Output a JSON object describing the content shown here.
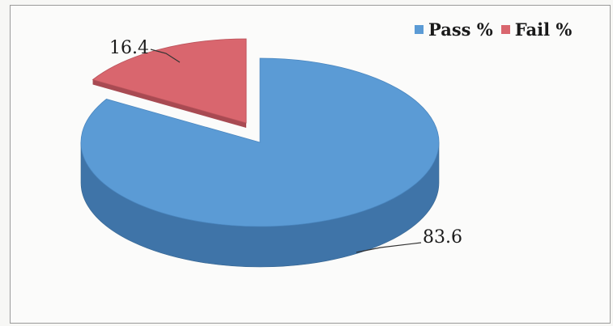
{
  "chart_data": {
    "type": "pie",
    "style": "3d",
    "categories": [
      "Pass %",
      "Fail %"
    ],
    "values": [
      83.6,
      16.4
    ],
    "data_labels": [
      "83.6",
      "16.4"
    ],
    "colors": [
      "#5b9bd5",
      "#d9666e"
    ],
    "side_colors": [
      "#3f74a8",
      "#a84a52"
    ],
    "legend": {
      "position": "top-right",
      "entries": [
        "Pass %",
        "Fail %"
      ]
    },
    "title": ""
  }
}
